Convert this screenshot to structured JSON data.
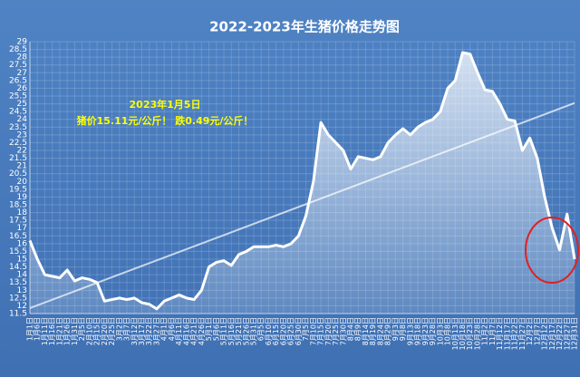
{
  "chart_data": {
    "type": "area-line",
    "title": "2022-2023年生猪价格走势图",
    "annotation": [
      "2023年1月5日",
      "猪价15.11元/公斤！ 跌0.49元/公斤！"
    ],
    "categories": [
      "1月1日",
      "1月6日",
      "1月11日",
      "1月16日",
      "1月21日",
      "1月26日",
      "1月31日",
      "2月5日",
      "2月10日",
      "2月15日",
      "2月20日",
      "2月25日",
      "3月2日",
      "3月7日",
      "3月12日",
      "3月17日",
      "3月22日",
      "3月27日",
      "4月1日",
      "4月6日",
      "4月11日",
      "4月16日",
      "4月21日",
      "4月26日",
      "5月1日",
      "5月6日",
      "5月11日",
      "5月16日",
      "5月21日",
      "5月26日",
      "5月31日",
      "6月5日",
      "6月10日",
      "6月15日",
      "6月20日",
      "6月25日",
      "6月30日",
      "7月5日",
      "7月10日",
      "7月15日",
      "7月20日",
      "7月25日",
      "7月30日",
      "8月4日",
      "8月9日",
      "8月14日",
      "8月19日",
      "8月24日",
      "8月29日",
      "9月3日",
      "9月8日",
      "9月13日",
      "9月18日",
      "9月23日",
      "9月28日",
      "10月3日",
      "10月8日",
      "10月13日",
      "10月18日",
      "10月23日",
      "10月28日",
      "11月2日",
      "11月7日",
      "11月12日",
      "11月17日",
      "11月22日",
      "11月27日",
      "12月2日",
      "12月7日",
      "12月12日",
      "12月17日",
      "12月22日",
      "12月27日",
      "12月31日"
    ],
    "values": [
      16.2,
      15.0,
      14.0,
      13.9,
      13.8,
      14.3,
      13.6,
      13.8,
      13.7,
      13.5,
      12.3,
      12.4,
      12.5,
      12.4,
      12.5,
      12.2,
      12.1,
      11.8,
      12.3,
      12.5,
      12.7,
      12.5,
      12.4,
      13.0,
      14.5,
      14.8,
      14.9,
      14.6,
      15.3,
      15.5,
      15.8,
      15.8,
      15.8,
      15.9,
      15.8,
      16.0,
      16.5,
      17.8,
      20.0,
      23.8,
      23.0,
      22.5,
      22.0,
      20.8,
      21.6,
      21.5,
      21.4,
      21.6,
      22.5,
      23.0,
      23.4,
      23.0,
      23.5,
      23.8,
      24.0,
      24.5,
      26.0,
      26.5,
      28.3,
      28.2,
      27.0,
      25.9,
      25.8,
      25.0,
      24.0,
      23.9,
      22.0,
      22.8,
      21.5,
      19.0,
      17.0,
      15.6,
      17.9,
      15.0
    ],
    "color": "#ffffff",
    "trendline": [
      11.85,
      25.05
    ],
    "ylim": [
      11.5,
      29
    ],
    "yticks": [
      11.5,
      12,
      12.5,
      13,
      13.5,
      14,
      14.5,
      15,
      15.5,
      16,
      16.5,
      17,
      17.5,
      18,
      18.5,
      19,
      19.5,
      20,
      20.5,
      21,
      21.5,
      22,
      22.5,
      23,
      23.5,
      24,
      24.5,
      25,
      25.5,
      26,
      26.5,
      27,
      27.5,
      28,
      28.5,
      29
    ],
    "grid": true
  }
}
